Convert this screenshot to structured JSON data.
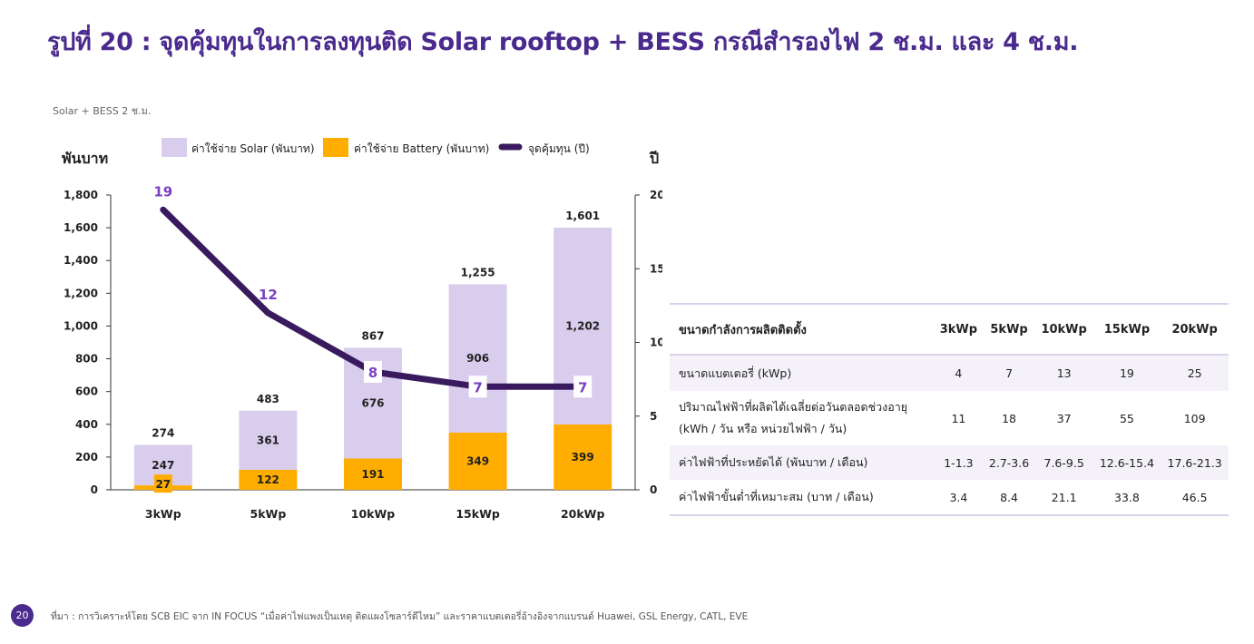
{
  "title": "รูปที่ 20 : จุดคุ้มทุนในการลงทุนติด Solar rooftop + BESS กรณีสำรองไฟ 2 ช.ม. และ 4 ช.ม.",
  "subtitle": "Solar + BESS 2 ช.ม.",
  "colors": {
    "solar": "#d9cdee",
    "battery": "#ffad00",
    "line": "#3a1a5e",
    "accent": "#7a3fc4",
    "brand": "#4b2a8e"
  },
  "chart_data": {
    "type": "bar",
    "stacked": true,
    "categories": [
      "3kWp",
      "5kWp",
      "10kWp",
      "15kWp",
      "20kWp"
    ],
    "ylabel": "พันบาท",
    "y2label": "ปี",
    "ylim": [
      0,
      1800
    ],
    "y2lim": [
      0,
      20
    ],
    "yticks": [
      "0",
      "200",
      "400",
      "600",
      "800",
      "1,000",
      "1,200",
      "1,400",
      "1,600",
      "1,800"
    ],
    "y2ticks": [
      "0",
      "5",
      "10",
      "15",
      "20"
    ],
    "legend_position": "top",
    "series": [
      {
        "name": "ค่าใช้จ่าย Solar (พันบาท)",
        "kind": "bar",
        "values": [
          247,
          361,
          676,
          906,
          1202
        ],
        "labels": [
          "247",
          "361",
          "676",
          "906",
          "1,202"
        ]
      },
      {
        "name": "ค่าใช้จ่าย Battery (พันบาท)",
        "kind": "bar",
        "values": [
          27,
          122,
          191,
          349,
          399
        ],
        "labels": [
          "27",
          "122",
          "191",
          "349",
          "399"
        ]
      },
      {
        "name": "จุดคุ้มทุน (ปี)",
        "kind": "line",
        "axis": "right",
        "values": [
          19,
          12,
          8,
          7,
          7
        ],
        "labels": [
          "19",
          "12",
          "8",
          "7",
          "7"
        ]
      }
    ],
    "totals": [
      274,
      483,
      867,
      1255,
      1601
    ],
    "total_labels": [
      "274",
      "483",
      "867",
      "1,255",
      "1,601"
    ]
  },
  "table": {
    "header": [
      "ขนาดกำลังการผลิตติดตั้ง",
      "3kWp",
      "5kWp",
      "10kWp",
      "15kWp",
      "20kWp"
    ],
    "rows": [
      {
        "label": "ขนาดแบตเตอรี่ (kWp)",
        "values": [
          "4",
          "7",
          "13",
          "19",
          "25"
        ]
      },
      {
        "label": "ปริมาณไฟฟ้าที่ผลิตได้เฉลี่ยต่อวันตลอดช่วงอายุ",
        "label2": "(kWh / วัน หรือ หน่วยไฟฟ้า / วัน)",
        "values": [
          "11",
          "18",
          "37",
          "55",
          "109"
        ]
      },
      {
        "label": "ค่าไฟฟ้าที่ประหยัดได้ (พันบาท / เดือน)",
        "values": [
          "1-1.3",
          "2.7-3.6",
          "7.6-9.5",
          "12.6-15.4",
          "17.6-21.3"
        ]
      },
      {
        "label": "ค่าไฟฟ้าขั้นต่ำที่เหมาะสม (บาท / เดือน)",
        "values": [
          "3.4",
          "8.4",
          "21.1",
          "33.8",
          "46.5"
        ]
      }
    ]
  },
  "page_number": "20",
  "source": "ที่มา : การวิเคราะห์โดย SCB EIC จาก IN FOCUS “เมื่อค่าไฟแพงเป็นเหตุ ติดแผงโซลาร์ดีไหม” และราคาแบตเตอรี่อ้างอิงจากแบรนด์ Huawei, GSL Energy, CATL, EVE"
}
